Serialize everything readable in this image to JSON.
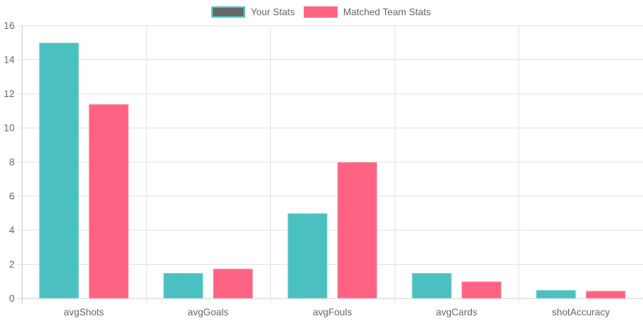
{
  "chart_data": {
    "type": "bar",
    "categories": [
      "avgShots",
      "avgGoals",
      "avgFouls",
      "avgCards",
      "shotAccuracy"
    ],
    "series": [
      {
        "name": "Your Stats",
        "values": [
          15,
          1.5,
          5,
          1.5,
          0.5
        ],
        "color": "#4BC0C0",
        "legend_swatch_color": "#666666",
        "legend_swatch_border": "#4BC0C0"
      },
      {
        "name": "Matched Team Stats",
        "values": [
          11.4,
          1.75,
          8,
          1,
          0.45
        ],
        "color": "#FF6384",
        "legend_swatch_color": "#FF6384",
        "legend_swatch_border": "#FF6384"
      }
    ],
    "title": "",
    "xlabel": "",
    "ylabel": "",
    "ylim": [
      0,
      16
    ],
    "y_ticks": [
      "0",
      "2",
      "4",
      "6",
      "8",
      "10",
      "12",
      "14",
      "16"
    ],
    "grid": true,
    "legend_position": "top"
  }
}
